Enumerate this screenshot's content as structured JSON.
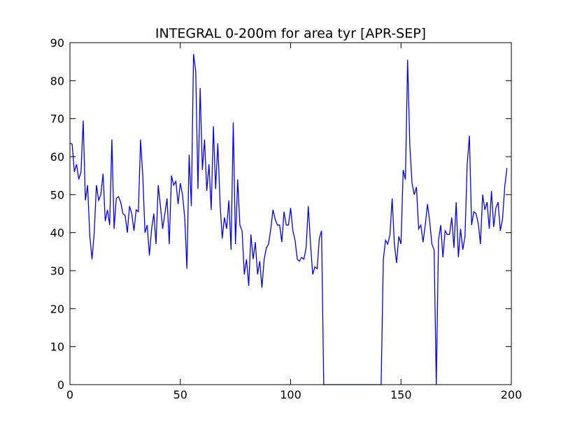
{
  "chart_data": {
    "type": "line",
    "title": "INTEGRAL 0-200m for area tyr [APR-SEP]",
    "x": [
      0,
      1,
      2,
      3,
      4,
      5,
      6,
      7,
      8,
      9,
      10,
      11,
      12,
      13,
      14,
      15,
      16,
      17,
      18,
      19,
      20,
      21,
      22,
      23,
      24,
      25,
      26,
      27,
      28,
      29,
      30,
      31,
      32,
      33,
      34,
      35,
      36,
      37,
      38,
      39,
      40,
      41,
      42,
      43,
      44,
      45,
      46,
      47,
      48,
      49,
      50,
      51,
      52,
      53,
      54,
      55,
      56,
      57,
      58,
      59,
      60,
      61,
      62,
      63,
      64,
      65,
      66,
      67,
      68,
      69,
      70,
      71,
      72,
      73,
      74,
      75,
      76,
      77,
      78,
      79,
      80,
      81,
      82,
      83,
      84,
      85,
      86,
      87,
      88,
      89,
      90,
      91,
      92,
      93,
      94,
      95,
      96,
      97,
      98,
      99,
      100,
      101,
      102,
      103,
      104,
      105,
      106,
      107,
      108,
      109,
      110,
      111,
      112,
      113,
      114,
      115,
      116,
      117,
      118,
      119,
      120,
      121,
      122,
      123,
      124,
      125,
      126,
      127,
      128,
      129,
      130,
      131,
      132,
      133,
      134,
      135,
      136,
      137,
      138,
      139,
      140,
      141,
      142,
      143,
      144,
      145,
      146,
      147,
      148,
      149,
      150,
      151,
      152,
      153,
      154,
      155,
      156,
      157,
      158,
      159,
      160,
      161,
      162,
      163,
      164,
      165,
      166,
      167,
      168,
      169,
      170,
      171,
      172,
      173,
      174,
      175,
      176,
      177,
      178,
      179,
      180,
      181,
      182,
      183,
      184,
      185,
      186,
      187,
      188,
      189,
      190,
      191,
      192,
      193,
      194,
      195,
      196,
      197,
      198
    ],
    "values": [
      63.5,
      63.3,
      56,
      58,
      54,
      56,
      69.5,
      48.5,
      52.5,
      39,
      33,
      40,
      52.5,
      48.5,
      50,
      55.5,
      43,
      46,
      42,
      64.5,
      41,
      49,
      49.5,
      48,
      45,
      44.5,
      40,
      47,
      45,
      40.5,
      46,
      45.5,
      64.5,
      55,
      40,
      42,
      34,
      41,
      45,
      37,
      52.5,
      47,
      41,
      45,
      49,
      37,
      55,
      52.5,
      53.5,
      47.5,
      53,
      50,
      44,
      30.5,
      60.5,
      47,
      87,
      82.5,
      51.5,
      78,
      56.5,
      64.5,
      51,
      58,
      46,
      68,
      51.5,
      63.5,
      48,
      38.5,
      44,
      41,
      48.5,
      35.5,
      69,
      37,
      54,
      42,
      40.5,
      29,
      33,
      26,
      39.5,
      33,
      37.5,
      29,
      32.5,
      25.5,
      33,
      36,
      37,
      41,
      46,
      43.5,
      42,
      42,
      37.5,
      45.5,
      42,
      42,
      46.5,
      40.5,
      38,
      33,
      32.5,
      33.5,
      33,
      36,
      47,
      37,
      29,
      31,
      30.5,
      38.5,
      40.5,
      0,
      0,
      0,
      0,
      0,
      0,
      0,
      0,
      0,
      0,
      0,
      0,
      0,
      0,
      0,
      0,
      0,
      0,
      0,
      0,
      0,
      0,
      0,
      0,
      0,
      0,
      0,
      33,
      38,
      37,
      39.5,
      49,
      37,
      32,
      39,
      37,
      56.5,
      54,
      85.5,
      63,
      53,
      50,
      52,
      41,
      42,
      37.5,
      42,
      47.5,
      43,
      37,
      35.5,
      0,
      38,
      42,
      33.5,
      40.5,
      39.5,
      39.5,
      44,
      36,
      48,
      33.5,
      41,
      35.5,
      39,
      58,
      65.5,
      42,
      45.5,
      45,
      42.5,
      37,
      50,
      46,
      48,
      41,
      51,
      41.5,
      46.5,
      48,
      40.5,
      43.5,
      52,
      57
    ],
    "color": "#0000ff",
    "xlim": [
      0,
      200
    ],
    "xticks": [
      0,
      50,
      100,
      150,
      200
    ],
    "ylim": [
      0,
      90
    ],
    "yticks": [
      0,
      10,
      20,
      30,
      40,
      50,
      60,
      70,
      80,
      90
    ]
  }
}
